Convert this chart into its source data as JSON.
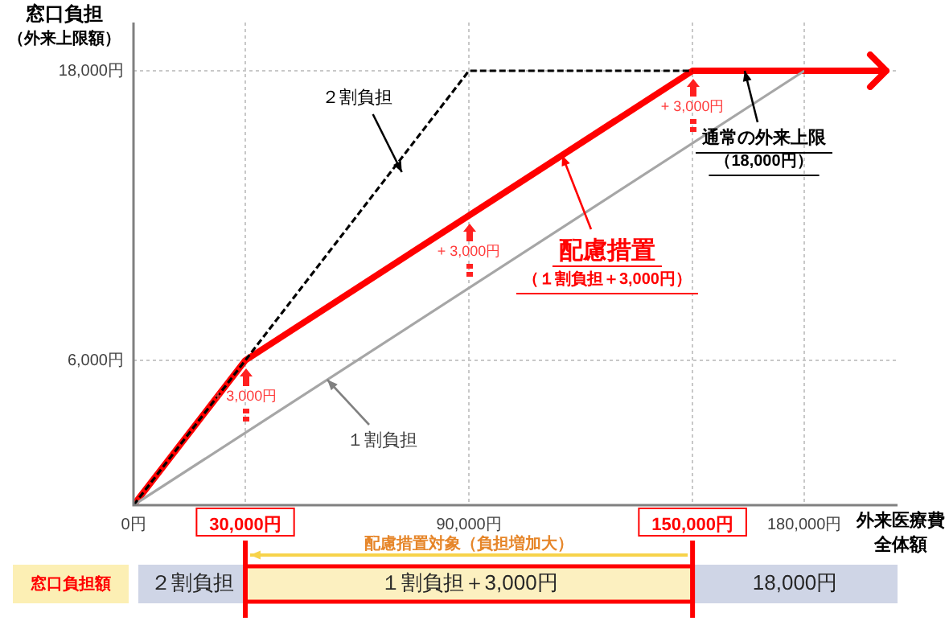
{
  "chart_data": {
    "type": "line",
    "xlabel": "外来医療費全体額",
    "ylabel": "窓口負担",
    "xlim": [
      0,
      205000
    ],
    "ylim": [
      0,
      20000
    ],
    "xticks": [
      {
        "value": 0,
        "label": "0円"
      },
      {
        "value": 30000,
        "label": "30,000円"
      },
      {
        "value": 90000,
        "label": "90,000円"
      },
      {
        "value": 150000,
        "label": "150,000円"
      },
      {
        "value": 180000,
        "label": "180,000円"
      }
    ],
    "yticks": [
      {
        "value": 6000,
        "label": "6,000円"
      },
      {
        "value": 18000,
        "label": "18,000円"
      }
    ],
    "grid": true,
    "legend": false,
    "marker": "none",
    "series": [
      {
        "color": "#000000",
        "line_style": "dashed",
        "x": [
          0,
          30000,
          90000,
          150000
        ],
        "values": [
          0,
          6000,
          18000,
          18000
        ]
      },
      {
        "color": "#a6a6a6",
        "line_style": "solid",
        "x": [
          0,
          180000
        ],
        "values": [
          0,
          18000
        ]
      },
      {
        "color": "#ff0000",
        "line_style": "solid",
        "x": [
          0,
          30000,
          150000,
          180000
        ],
        "values": [
          0,
          6000,
          18000,
          18000
        ]
      }
    ],
    "annotations": [
      {
        "text": "２割負担",
        "x": 72000,
        "y": 13800
      },
      {
        "text": "１割負担",
        "x": 52000,
        "y": 5200
      },
      {
        "text": "配慮措置",
        "x": 115000,
        "y": 14500
      },
      "（１割負担＋3,000円）",
      {
        "text": "通常の外来上限",
        "x": 164000,
        "y": 18000
      },
      "（18,000円）",
      "+ 3,000円",
      "+ 3,000円",
      "+ 3,000円",
      "配慮措置対象（負担増加大）",
      "窓口負担額",
      "２割負担",
      "１割負担＋3,000円",
      "18,000円",
      "（外来上限額）"
    ]
  }
}
